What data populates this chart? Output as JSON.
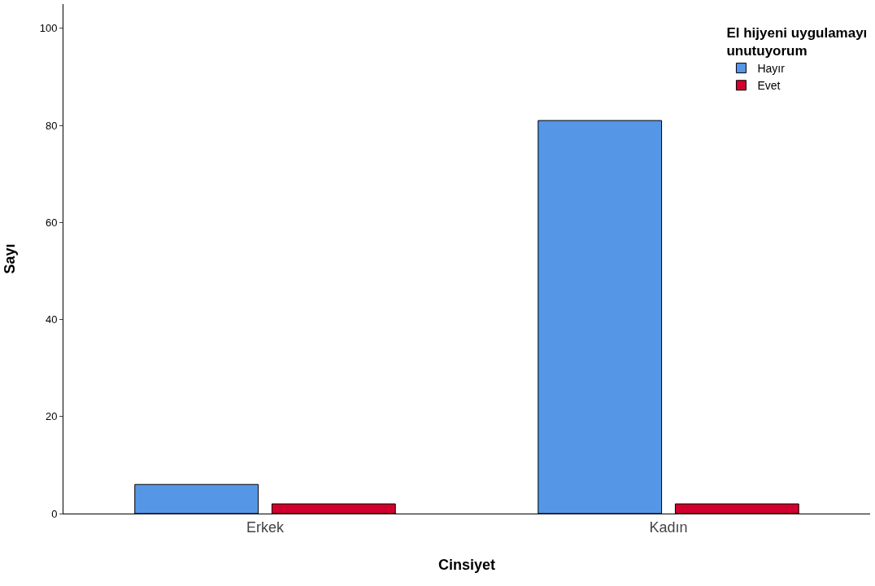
{
  "chart_data": {
    "type": "bar",
    "xlabel": "Cinsiyet",
    "ylabel": "Sayı",
    "legend_title": "El hijyeni uygulamayı\nunutuyorum",
    "categories": [
      "Erkek",
      "Kadın"
    ],
    "series": [
      {
        "name": "Hayır",
        "color": "#5596e6",
        "values": [
          6,
          81
        ]
      },
      {
        "name": "Evet",
        "color": "#d2002e",
        "values": [
          2,
          2
        ]
      }
    ],
    "ylim": [
      0,
      105
    ],
    "yticks": [
      0,
      20,
      40,
      60,
      80,
      100
    ],
    "grid": false,
    "legend": "top right"
  }
}
